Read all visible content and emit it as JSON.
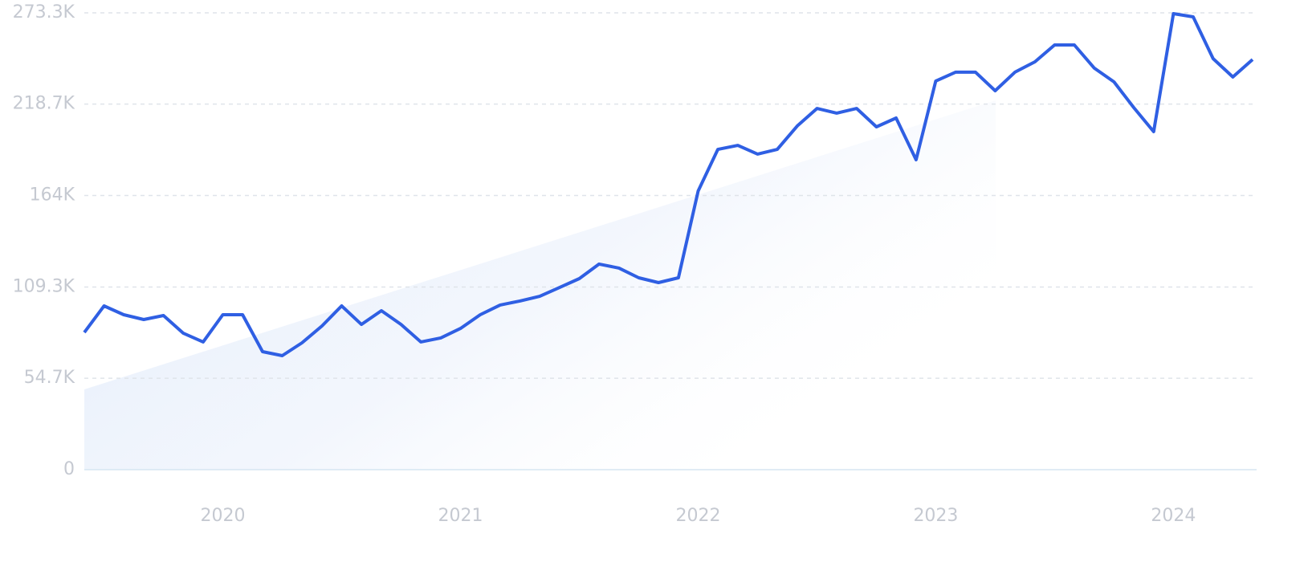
{
  "chart_data": {
    "type": "line",
    "x": [
      2019.417,
      2019.5,
      2019.583,
      2019.667,
      2019.75,
      2019.833,
      2019.917,
      2020,
      2020.083,
      2020.167,
      2020.25,
      2020.333,
      2020.417,
      2020.5,
      2020.583,
      2020.667,
      2020.75,
      2020.833,
      2020.917,
      2021,
      2021.083,
      2021.167,
      2021.25,
      2021.333,
      2021.417,
      2021.5,
      2021.583,
      2021.667,
      2021.75,
      2021.833,
      2021.917,
      2022,
      2022.083,
      2022.167,
      2022.25,
      2022.333,
      2022.417,
      2022.5,
      2022.583,
      2022.667,
      2022.75,
      2022.833,
      2022.917,
      2023,
      2023.083,
      2023.167,
      2023.25,
      2023.333,
      2023.417,
      2023.5,
      2023.583,
      2023.667,
      2023.75,
      2023.833,
      2023.917,
      2024,
      2024.083,
      2024.167,
      2024.25,
      2024.333
    ],
    "series": [
      {
        "color": "#2f5fe3",
        "values": [
          82100,
          98000,
          92700,
          89800,
          92200,
          81700,
          76400,
          92700,
          92700,
          70600,
          68200,
          75900,
          86000,
          98000,
          86900,
          95100,
          86900,
          76400,
          78800,
          84500,
          92700,
          98500,
          100900,
          103700,
          109000,
          114300,
          123000,
          120600,
          114800,
          111900,
          114800,
          166700,
          191600,
          194000,
          188800,
          191600,
          205600,
          216100,
          213300,
          216100,
          205100,
          210400,
          185400,
          232500,
          237800,
          237800,
          226700,
          237800,
          244000,
          254100,
          254100,
          240200,
          232000,
          216600,
          202200,
          272800,
          270900,
          245900,
          234900,
          245400
        ]
      }
    ],
    "xlim": [
      2019.417,
      2024.35
    ],
    "xticks": [
      2020,
      2021,
      2022,
      2023,
      2024
    ],
    "ylim": [
      0,
      273300
    ],
    "yticks": [
      0,
      {
        "value": 54700,
        "label": "54.7K"
      },
      {
        "value": 109300,
        "label": "109.3K"
      },
      {
        "value": 164000,
        "label": "164K"
      },
      {
        "value": 218700,
        "label": "218.7K"
      },
      {
        "value": 273300,
        "label": "273.3K"
      }
    ],
    "grid": true
  }
}
